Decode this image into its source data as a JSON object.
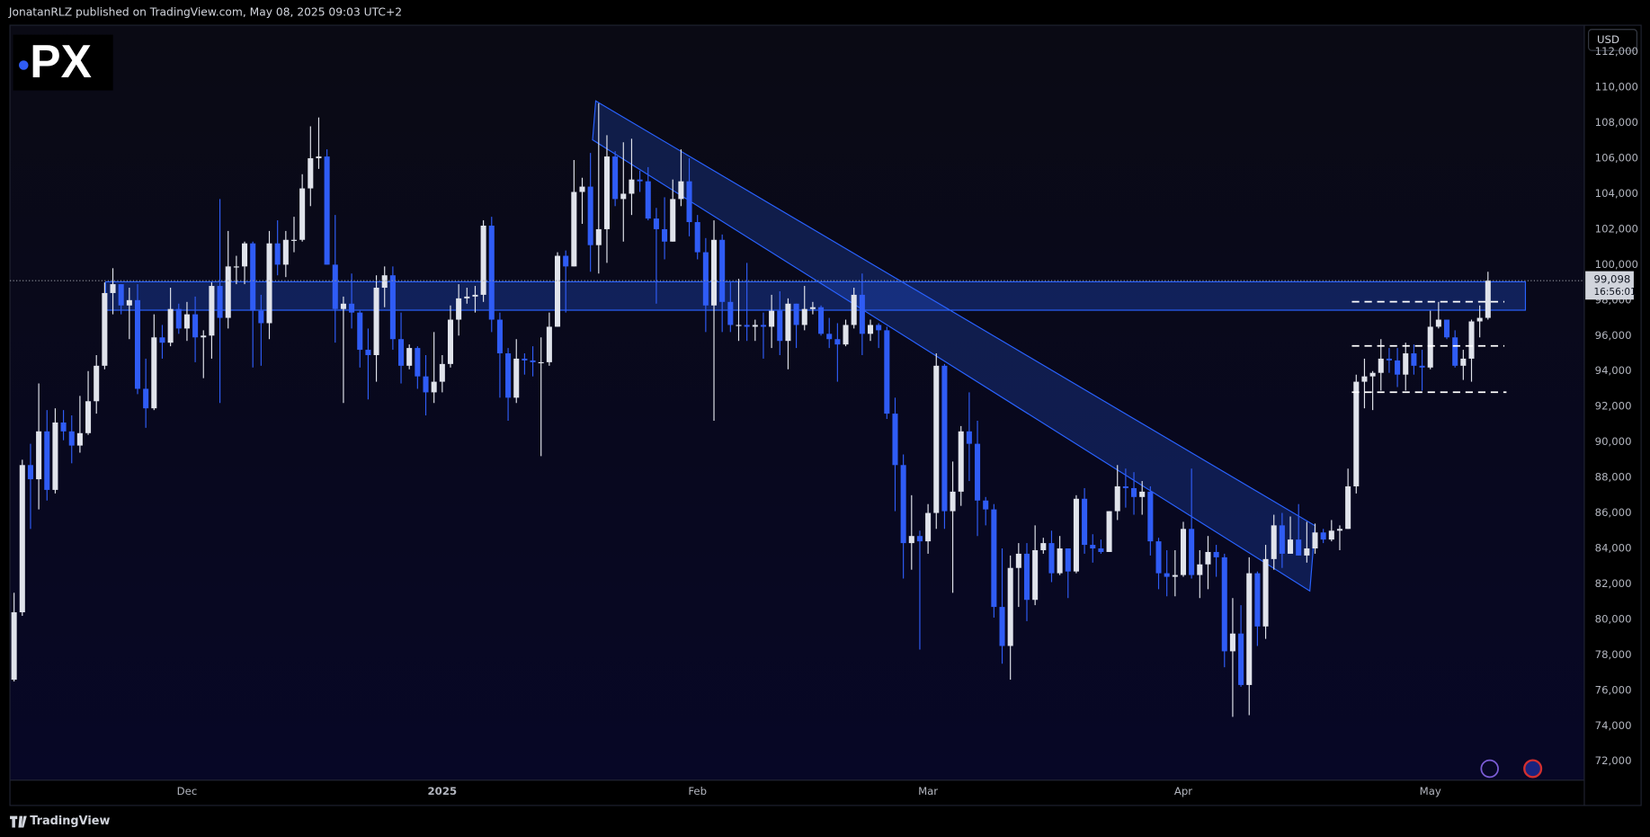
{
  "header": {
    "byline": "JonatanRLZ published on TradingView.com, May 08, 2025 09:03 UTC+2"
  },
  "logo": "PX",
  "footer": "TradingView",
  "chart_data": {
    "type": "candlestick",
    "currency": "USD",
    "last_price": {
      "value": 99098,
      "label": "99,098"
    },
    "countdown": "16:56:01",
    "up_color": "#e0e3eb",
    "down_color": "#2f5cf5",
    "grid": false,
    "xlim": [
      -0.5,
      190.7
    ],
    "xticks": [
      {
        "value": 21,
        "label": "Dec"
      },
      {
        "value": 52,
        "label": "2025"
      },
      {
        "value": 83,
        "label": "Feb"
      },
      {
        "value": 111,
        "label": "Mar"
      },
      {
        "value": 142,
        "label": "Apr"
      },
      {
        "value": 172,
        "label": "May"
      }
    ],
    "ylim": [
      70930,
      113500
    ],
    "yticks": [
      {
        "value": 72000,
        "label": "72,000"
      },
      {
        "value": 74000,
        "label": "74,000"
      },
      {
        "value": 76000,
        "label": "76,000"
      },
      {
        "value": 78000,
        "label": "78,000"
      },
      {
        "value": 80000,
        "label": "80,000"
      },
      {
        "value": 82000,
        "label": "82,000"
      },
      {
        "value": 84000,
        "label": "84,000"
      },
      {
        "value": 86000,
        "label": "86,000"
      },
      {
        "value": 88000,
        "label": "88,000"
      },
      {
        "value": 90000,
        "label": "90,000"
      },
      {
        "value": 92000,
        "label": "92,000"
      },
      {
        "value": 94000,
        "label": "94,000"
      },
      {
        "value": 96000,
        "label": "96,000"
      },
      {
        "value": 98000,
        "label": "98,000"
      },
      {
        "value": 100000,
        "label": "100,000"
      },
      {
        "value": 102000,
        "label": "102,000"
      },
      {
        "value": 104000,
        "label": "104,000"
      },
      {
        "value": 106000,
        "label": "106,000"
      },
      {
        "value": 108000,
        "label": "108,000"
      },
      {
        "value": 110000,
        "label": "110,000"
      },
      {
        "value": 112000,
        "label": "112,000"
      }
    ],
    "ohlc": [
      [
        76600,
        81500,
        76500,
        80400
      ],
      [
        80400,
        89000,
        80200,
        88700
      ],
      [
        88700,
        89900,
        85100,
        87900
      ],
      [
        87900,
        93300,
        86200,
        90600
      ],
      [
        90600,
        91800,
        86700,
        87300
      ],
      [
        87300,
        91900,
        87100,
        91100
      ],
      [
        91100,
        91800,
        90100,
        90600
      ],
      [
        90600,
        91500,
        88800,
        89800
      ],
      [
        89800,
        92600,
        89400,
        90500
      ],
      [
        90500,
        94000,
        90400,
        92300
      ],
      [
        92300,
        94900,
        91600,
        94300
      ],
      [
        94300,
        99000,
        94100,
        98400
      ],
      [
        98400,
        99800,
        97200,
        98900
      ],
      [
        98900,
        98900,
        97200,
        97700
      ],
      [
        97700,
        98700,
        95800,
        98000
      ],
      [
        98000,
        98900,
        92700,
        93000
      ],
      [
        93000,
        94700,
        90800,
        91900
      ],
      [
        91900,
        97200,
        91800,
        95900
      ],
      [
        95900,
        96600,
        94700,
        95600
      ],
      [
        95600,
        98700,
        95400,
        97500
      ],
      [
        97500,
        97800,
        96100,
        96400
      ],
      [
        96400,
        97900,
        95700,
        97200
      ],
      [
        97200,
        98200,
        94500,
        95900
      ],
      [
        95900,
        96300,
        93600,
        96000
      ],
      [
        96000,
        99000,
        94700,
        98800
      ],
      [
        98800,
        103700,
        92200,
        97000
      ],
      [
        97000,
        101900,
        96400,
        99900
      ],
      [
        99900,
        100500,
        98900,
        99900
      ],
      [
        99900,
        101300,
        98900,
        101200
      ],
      [
        101200,
        101300,
        94200,
        97400
      ],
      [
        97400,
        98300,
        94300,
        96700
      ],
      [
        96700,
        101900,
        95800,
        101200
      ],
      [
        101200,
        102500,
        99400,
        100000
      ],
      [
        100000,
        101900,
        99300,
        101400
      ],
      [
        101400,
        102700,
        100700,
        101400
      ],
      [
        101400,
        105100,
        101300,
        104300
      ],
      [
        104300,
        107800,
        103300,
        106000
      ],
      [
        106000,
        108300,
        105400,
        106100
      ],
      [
        106100,
        106500,
        100000,
        100000
      ],
      [
        100000,
        102800,
        95600,
        97500
      ],
      [
        97500,
        98200,
        92200,
        97800
      ],
      [
        97800,
        99500,
        96400,
        97300
      ],
      [
        97300,
        97400,
        94200,
        95200
      ],
      [
        95200,
        96400,
        92400,
        94900
      ],
      [
        94900,
        99400,
        93400,
        98700
      ],
      [
        98700,
        99900,
        97600,
        99400
      ],
      [
        99400,
        99900,
        95200,
        95800
      ],
      [
        95800,
        97300,
        93300,
        94300
      ],
      [
        94300,
        95500,
        94100,
        95300
      ],
      [
        95300,
        95400,
        93000,
        93700
      ],
      [
        93700,
        94900,
        91500,
        92800
      ],
      [
        92800,
        96200,
        92200,
        93400
      ],
      [
        93400,
        94900,
        92800,
        94400
      ],
      [
        94400,
        97700,
        94200,
        96900
      ],
      [
        96900,
        98900,
        96000,
        98100
      ],
      [
        98100,
        98700,
        97800,
        98200
      ],
      [
        98200,
        98800,
        97300,
        98300
      ],
      [
        98300,
        102500,
        97900,
        102200
      ],
      [
        102200,
        102700,
        96200,
        96900
      ],
      [
        96900,
        97300,
        92500,
        95000
      ],
      [
        95000,
        95300,
        91200,
        92500
      ],
      [
        92500,
        95800,
        92200,
        94700
      ],
      [
        94700,
        95000,
        93800,
        94600
      ],
      [
        94600,
        95400,
        93700,
        94500
      ],
      [
        94500,
        95900,
        89200,
        94500
      ],
      [
        94500,
        97300,
        94300,
        96500
      ],
      [
        96500,
        100700,
        96500,
        100500
      ],
      [
        100500,
        100800,
        97300,
        99900
      ],
      [
        99900,
        105900,
        99900,
        104100
      ],
      [
        104100,
        104900,
        102300,
        104400
      ],
      [
        104400,
        106300,
        99600,
        101100
      ],
      [
        101100,
        109100,
        99500,
        102000
      ],
      [
        102000,
        107300,
        100100,
        106100
      ],
      [
        106100,
        106400,
        103300,
        103700
      ],
      [
        103700,
        106900,
        101300,
        104000
      ],
      [
        104000,
        107100,
        102800,
        104800
      ],
      [
        104800,
        105300,
        104100,
        104700
      ],
      [
        104700,
        105500,
        102500,
        102600
      ],
      [
        102600,
        103200,
        97800,
        102000
      ],
      [
        102000,
        103800,
        100300,
        101300
      ],
      [
        101300,
        104800,
        101300,
        103700
      ],
      [
        103700,
        106500,
        103300,
        104700
      ],
      [
        104700,
        106000,
        101600,
        102400
      ],
      [
        102400,
        102800,
        100300,
        100700
      ],
      [
        100700,
        101500,
        96200,
        97700
      ],
      [
        97700,
        102500,
        91200,
        101400
      ],
      [
        101400,
        101700,
        96200,
        97900
      ],
      [
        97900,
        99000,
        96200,
        96600
      ],
      [
        96600,
        99200,
        95700,
        96600
      ],
      [
        96600,
        100100,
        95700,
        96500
      ],
      [
        96500,
        96900,
        95700,
        96600
      ],
      [
        96600,
        97300,
        94700,
        96500
      ],
      [
        96500,
        98300,
        95300,
        97400
      ],
      [
        97400,
        98500,
        94900,
        95700
      ],
      [
        95700,
        98100,
        94100,
        97800
      ],
      [
        97800,
        97800,
        95300,
        96600
      ],
      [
        96600,
        98800,
        96300,
        97500
      ],
      [
        97500,
        97900,
        97200,
        97600
      ],
      [
        97600,
        97700,
        96000,
        96100
      ],
      [
        96100,
        97000,
        95300,
        95800
      ],
      [
        95800,
        96700,
        93400,
        95500
      ],
      [
        95500,
        96900,
        95400,
        96600
      ],
      [
        96600,
        98700,
        96400,
        98300
      ],
      [
        98300,
        99500,
        94900,
        96100
      ],
      [
        96100,
        96900,
        95700,
        96600
      ],
      [
        96600,
        96700,
        95300,
        96300
      ],
      [
        96300,
        96500,
        91300,
        91600
      ],
      [
        91600,
        92500,
        86100,
        88700
      ],
      [
        88700,
        89300,
        82300,
        84300
      ],
      [
        84300,
        87000,
        82800,
        84700
      ],
      [
        84700,
        85000,
        78300,
        84400
      ],
      [
        84400,
        86500,
        83700,
        86000
      ],
      [
        86000,
        95000,
        85100,
        94300
      ],
      [
        94300,
        94400,
        85100,
        86100
      ],
      [
        86100,
        88900,
        81500,
        87200
      ],
      [
        87200,
        90900,
        86400,
        90600
      ],
      [
        90600,
        92800,
        87800,
        89900
      ],
      [
        89900,
        91200,
        84700,
        86700
      ],
      [
        86700,
        86900,
        85300,
        86200
      ],
      [
        86200,
        86500,
        80100,
        80700
      ],
      [
        80700,
        84000,
        77500,
        78500
      ],
      [
        78500,
        83600,
        76600,
        82900
      ],
      [
        82900,
        84300,
        80700,
        83700
      ],
      [
        83700,
        84300,
        79900,
        81100
      ],
      [
        81100,
        85300,
        80800,
        83900
      ],
      [
        83900,
        84600,
        83700,
        84300
      ],
      [
        84300,
        85000,
        82100,
        82600
      ],
      [
        82600,
        84700,
        82500,
        84000
      ],
      [
        84000,
        84000,
        81200,
        82700
      ],
      [
        82700,
        87000,
        82600,
        86800
      ],
      [
        86800,
        87400,
        83700,
        84200
      ],
      [
        84200,
        84800,
        83200,
        84000
      ],
      [
        84000,
        84500,
        83700,
        83800
      ],
      [
        83800,
        86100,
        83800,
        86100
      ],
      [
        86100,
        88700,
        85600,
        87500
      ],
      [
        87500,
        88500,
        86300,
        87400
      ],
      [
        87400,
        88300,
        85900,
        86900
      ],
      [
        86900,
        87800,
        85900,
        87200
      ],
      [
        87200,
        87500,
        83600,
        84400
      ],
      [
        84400,
        84600,
        81700,
        82600
      ],
      [
        82600,
        83900,
        81300,
        82400
      ],
      [
        82400,
        83900,
        81300,
        82500
      ],
      [
        82500,
        85500,
        82400,
        85100
      ],
      [
        85100,
        88500,
        82300,
        82500
      ],
      [
        82500,
        83900,
        81200,
        83100
      ],
      [
        83100,
        84700,
        81700,
        83800
      ],
      [
        83800,
        84200,
        82400,
        83500
      ],
      [
        83500,
        83700,
        77300,
        78200
      ],
      [
        78200,
        81200,
        74500,
        79200
      ],
      [
        79200,
        80800,
        76200,
        76300
      ],
      [
        76300,
        83500,
        74600,
        82600
      ],
      [
        82600,
        82700,
        78500,
        79600
      ],
      [
        79600,
        84200,
        78900,
        83400
      ],
      [
        83400,
        85900,
        82800,
        85300
      ],
      [
        85300,
        86000,
        82900,
        83700
      ],
      [
        83700,
        85800,
        83700,
        84500
      ],
      [
        84500,
        86500,
        83600,
        83600
      ],
      [
        83600,
        85500,
        83200,
        84000
      ],
      [
        84000,
        85400,
        83700,
        84900
      ],
      [
        84900,
        85100,
        84300,
        84500
      ],
      [
        84500,
        85600,
        84400,
        85000
      ],
      [
        85000,
        85300,
        83900,
        85100
      ],
      [
        85100,
        88500,
        85100,
        87500
      ],
      [
        87500,
        93800,
        87100,
        93400
      ],
      [
        93400,
        94700,
        91900,
        93700
      ],
      [
        93700,
        94000,
        91800,
        93900
      ],
      [
        93900,
        95800,
        92900,
        94700
      ],
      [
        94700,
        95300,
        93900,
        94600
      ],
      [
        94600,
        95300,
        93100,
        93800
      ],
      [
        93800,
        95600,
        92900,
        95000
      ],
      [
        95000,
        95500,
        93800,
        94300
      ],
      [
        94300,
        95200,
        92900,
        94200
      ],
      [
        94200,
        97400,
        94100,
        96500
      ],
      [
        96500,
        97900,
        96400,
        96900
      ],
      [
        96900,
        96900,
        95800,
        95900
      ],
      [
        95900,
        96300,
        94200,
        94300
      ],
      [
        94300,
        95200,
        93500,
        94700
      ],
      [
        94700,
        96900,
        93400,
        96800
      ],
      [
        96800,
        97700,
        95900,
        97000
      ],
      [
        97000,
        99600,
        96900,
        99098
      ]
    ]
  }
}
